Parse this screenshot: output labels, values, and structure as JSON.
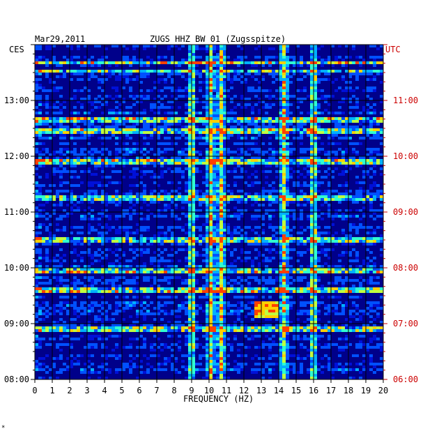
{
  "header": {
    "date": "Mar29,2011",
    "station": "ZUGS HHZ BW 01 (Zugsspitze)",
    "left_tz": "CES",
    "right_tz": "UTC"
  },
  "footer": {
    "xlabel": "FREQUENCY (HZ)",
    "mark": "*"
  },
  "chart_data": {
    "type": "heatmap",
    "title": "ZUGS HHZ BW 01 (Zugsspitze)",
    "date": "Mar29,2011",
    "xlabel": "FREQUENCY (HZ)",
    "xlim": [
      0,
      20
    ],
    "x_ticks": [
      "0",
      "1",
      "2",
      "3",
      "4",
      "5",
      "6",
      "7",
      "8",
      "9",
      "10",
      "11",
      "12",
      "13",
      "14",
      "15",
      "16",
      "17",
      "18",
      "19",
      "20"
    ],
    "left_axis": {
      "timezone": "CES",
      "ticks": [
        "13:00",
        "12:00",
        "11:00",
        "10:00",
        "09:00",
        "08:00"
      ]
    },
    "right_axis": {
      "timezone": "UTC",
      "ticks": [
        "11:00",
        "10:00",
        "09:00",
        "08:00",
        "07:00",
        "06:00"
      ]
    },
    "time_range_utc": [
      "06:00",
      "12:00"
    ],
    "colormap": [
      "#00007a",
      "#0010d8",
      "#0050ff",
      "#00b0ff",
      "#30ffd0",
      "#c0ff40",
      "#ffd000",
      "#ff4000"
    ],
    "dominant_frequencies_hz": [
      9.0,
      10.1,
      10.7,
      14.3,
      16.0
    ],
    "strong_rows_utc": [
      "08:30",
      "08:00",
      "06:55",
      "07:45"
    ]
  },
  "colors": {
    "axis_left": "#000000",
    "axis_right": "#cc0000",
    "background_plot": "#00008a"
  }
}
